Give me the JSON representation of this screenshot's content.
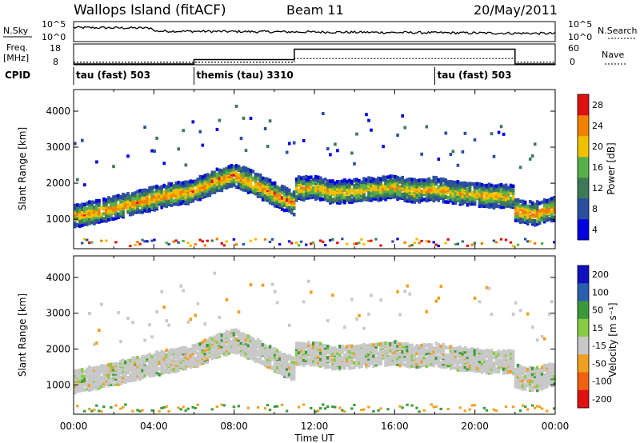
{
  "header": {
    "site": "Wallops Island (fitACF)",
    "beam": "Beam 11",
    "date": "20/May/2011"
  },
  "status_panels": {
    "nsky_label": "N.Sky",
    "nsky_ticks": [
      "10^5",
      "10^0"
    ],
    "nsearch_label": "N.Search",
    "nsearch_ticks": [
      "10^5",
      "10^0"
    ],
    "freq_label_1": "Freq.",
    "freq_label_2": "[MHz]",
    "freq_ticks": [
      "18",
      "8"
    ],
    "nave_label": "Nave",
    "nave_ticks": [
      "60",
      "0"
    ],
    "cpid_label": "CPID",
    "cpid_segments": [
      {
        "label": "tau (fast) 503",
        "start": 0,
        "end": 6
      },
      {
        "label": "themis (tau) 3310",
        "start": 6,
        "end": 18
      },
      {
        "label": "tau (fast) 503",
        "start": 18,
        "end": 24
      }
    ]
  },
  "chart_data": [
    {
      "type": "heatmap",
      "name_hint": "power",
      "ylabel": "Slant Range [km]",
      "xlabel": "Time UT",
      "x_ticks": [
        "00:00",
        "04:00",
        "08:00",
        "12:00",
        "16:00",
        "20:00",
        "00:00"
      ],
      "x_range_hours": [
        0,
        24
      ],
      "y_ticks": [
        1000,
        2000,
        3000,
        4000
      ],
      "ylim": [
        180,
        4600
      ],
      "colorbar_label": "Power [dB]",
      "colorbar_ticks": [
        "4",
        "8",
        "12",
        "16",
        "20",
        "24",
        "28"
      ],
      "colorbar_colors": [
        "#0000e0",
        "#2a4ea0",
        "#3d7a58",
        "#58b04a",
        "#f0c000",
        "#f08000",
        "#e01010"
      ],
      "bands": [
        {
          "t": [
            0,
            0.5,
            1.5,
            3,
            4.5,
            6,
            7,
            7.5,
            8,
            9,
            10,
            11
          ],
          "r": [
            1100,
            1150,
            1250,
            1450,
            1650,
            1800,
            2050,
            2150,
            2250,
            2000,
            1700,
            1450
          ],
          "level": 0.85
        },
        {
          "t": [
            11,
            12,
            13,
            14,
            15,
            16,
            17,
            18,
            19,
            20,
            21,
            22
          ],
          "r": [
            1850,
            1900,
            1750,
            1800,
            1850,
            1900,
            1800,
            1850,
            1750,
            1700,
            1650,
            1650
          ],
          "level": 0.75
        },
        {
          "t": [
            22,
            22.5,
            23,
            23.5,
            24
          ],
          "r": [
            1250,
            1200,
            1150,
            1250,
            1300
          ],
          "level": 0.9
        }
      ]
    },
    {
      "type": "heatmap",
      "name_hint": "velocity",
      "ylabel": "Slant Range [km]",
      "x_ticks": [
        "00:00",
        "04:00",
        "08:00",
        "12:00",
        "16:00",
        "20:00",
        "00:00"
      ],
      "y_ticks": [
        1000,
        2000,
        3000,
        4000
      ],
      "ylim": [
        180,
        4600
      ],
      "colorbar_label": "Velocity [m s⁻¹]",
      "colorbar_ticks": [
        "200",
        "100",
        "50",
        "15",
        "-15",
        "-50",
        "-100",
        "-200"
      ],
      "colorbar_colors": [
        "#1010c0",
        "#2a5fb0",
        "#3a9a3a",
        "#88cc44",
        "#c8c8c8",
        "#f0a020",
        "#f06010",
        "#e01010"
      ]
    }
  ]
}
